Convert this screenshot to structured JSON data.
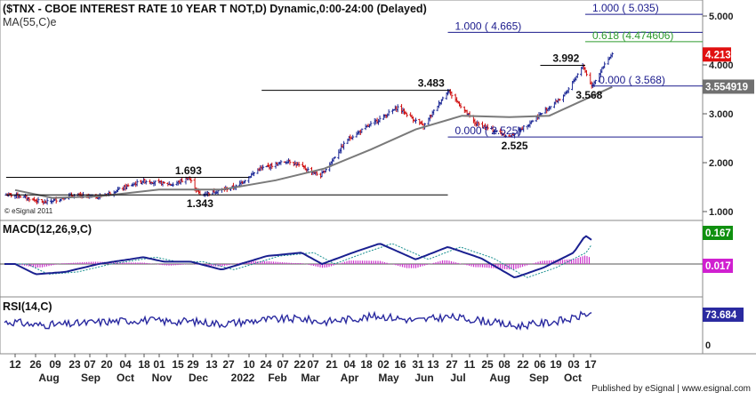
{
  "header": {
    "title": "($TNX - CBOE INTEREST RATE 10 YEAR T NOT,D) Dynamic,0:00-24:00 (Delayed)",
    "ma_label": "MA(55,C)e",
    "watermark": "© eSignal 2011"
  },
  "footer": {
    "published": "Published by eSignal | www.esignal.com"
  },
  "colors": {
    "up_bar": "#1e2a96",
    "down_bar": "#d01010",
    "ma_line": "#7a7a7a",
    "trend_line": "#000000",
    "fib_line": "#1a1a8c",
    "fib_green": "#2e9b2e",
    "macd_line": "#1a2090",
    "macd_signal": "#1a9090",
    "macd_hist": "#cc33cc",
    "rsi_line": "#2a2aa0",
    "badge_red": "#e01010",
    "badge_gray": "#707070",
    "badge_green": "#109010",
    "badge_magenta": "#d020d0",
    "badge_blue": "#2a2aa0"
  },
  "x_axis": {
    "day_labels": [
      "12",
      "26",
      "09",
      "23",
      "07",
      "20",
      "04",
      "18",
      "01",
      "15",
      "29",
      "13",
      "27",
      "10",
      "24",
      "07",
      "22",
      "07",
      "21",
      "04",
      "18",
      "02",
      "16",
      "31",
      "13",
      "27",
      "11",
      "25",
      "08",
      "22",
      "06",
      "19",
      "03",
      "17"
    ],
    "month_labels": [
      "Aug",
      "Sep",
      "Oct",
      "Nov",
      "Dec",
      "2022",
      "Feb",
      "Mar",
      "Apr",
      "May",
      "Jun",
      "Jul",
      "Aug",
      "Sep",
      "Oct"
    ]
  },
  "chart_data": [
    {
      "type": "ohlc",
      "title": "($TNX - CBOE INTEREST RATE 10 YEAR T NOT,D) Dynamic,0:00-24:00 (Delayed)",
      "y_ticks": [
        "1.000",
        "2.000",
        "3.000",
        "4.000",
        "5.000"
      ],
      "ylim": [
        0.9,
        5.3
      ],
      "last_price": "4.213",
      "ma_value": "3.554919",
      "ma_series_name": "MA(55,C)e",
      "key_points": [
        {
          "date": "2021-07-12",
          "close": 1.34
        },
        {
          "date": "2021-08-04",
          "close": 1.18
        },
        {
          "date": "2021-08-25",
          "close": 1.33
        },
        {
          "date": "2021-09-15",
          "close": 1.3
        },
        {
          "date": "2021-10-20",
          "close": 1.63
        },
        {
          "date": "2021-11-12",
          "close": 1.55
        },
        {
          "date": "2021-11-24",
          "close": 1.69
        },
        {
          "date": "2021-12-03",
          "close": 1.34
        },
        {
          "date": "2021-12-31",
          "close": 1.51
        },
        {
          "date": "2022-01-18",
          "close": 1.87
        },
        {
          "date": "2022-02-10",
          "close": 2.04
        },
        {
          "date": "2022-03-07",
          "close": 1.73
        },
        {
          "date": "2022-03-28",
          "close": 2.48
        },
        {
          "date": "2022-05-06",
          "close": 3.13
        },
        {
          "date": "2022-05-26",
          "close": 2.74
        },
        {
          "date": "2022-06-14",
          "close": 3.48
        },
        {
          "date": "2022-07-05",
          "close": 2.81
        },
        {
          "date": "2022-08-01",
          "close": 2.53
        },
        {
          "date": "2022-08-16",
          "close": 2.8
        },
        {
          "date": "2022-09-14",
          "close": 3.41
        },
        {
          "date": "2022-09-27",
          "close": 3.99
        },
        {
          "date": "2022-10-04",
          "close": 3.57
        },
        {
          "date": "2022-10-14",
          "close": 4.0
        },
        {
          "date": "2022-10-20",
          "close": 4.21
        }
      ],
      "ma_points": [
        {
          "date": "2021-07-12",
          "value": 1.44
        },
        {
          "date": "2021-08-10",
          "value": 1.28
        },
        {
          "date": "2021-09-15",
          "value": 1.31
        },
        {
          "date": "2021-11-01",
          "value": 1.45
        },
        {
          "date": "2021-12-20",
          "value": 1.45
        },
        {
          "date": "2022-01-31",
          "value": 1.64
        },
        {
          "date": "2022-03-10",
          "value": 1.88
        },
        {
          "date": "2022-04-15",
          "value": 2.27
        },
        {
          "date": "2022-05-20",
          "value": 2.68
        },
        {
          "date": "2022-06-25",
          "value": 2.96
        },
        {
          "date": "2022-08-01",
          "value": 2.93
        },
        {
          "date": "2022-09-01",
          "value": 2.96
        },
        {
          "date": "2022-10-20",
          "value": 3.55
        }
      ],
      "trend_lines": [
        {
          "from": {
            "date": "2021-07-05",
            "value": 1.7
          },
          "to": {
            "date": "2022-01-10",
            "value": 1.7
          }
        },
        {
          "from": {
            "date": "2021-07-05",
            "value": 1.34
          },
          "to": {
            "date": "2022-06-14",
            "value": 1.34
          }
        },
        {
          "from": {
            "date": "2022-01-20",
            "value": 3.48
          },
          "to": {
            "date": "2022-06-16",
            "value": 3.48
          }
        },
        {
          "from": {
            "date": "2022-08-25",
            "value": 3.99
          },
          "to": {
            "date": "2022-09-29",
            "value": 3.99
          }
        }
      ],
      "fib_lines": [
        {
          "label": "1.000 ( 4.665)",
          "value": 4.665,
          "from": "2022-06-14"
        },
        {
          "label": "1.000 ( 5.035)",
          "value": 5.035,
          "from": "2022-09-29"
        },
        {
          "label": "0.618 (4.474606)",
          "value": 4.4746,
          "from": "2022-09-29",
          "color": "green"
        },
        {
          "label": "0.000 ( 3.568)",
          "value": 3.568,
          "from": "2022-10-04"
        },
        {
          "label": "0.000 ( 2.525)",
          "value": 2.525,
          "from": "2022-06-14"
        }
      ],
      "annotations": [
        {
          "text": "1.693",
          "date": "2021-11-24",
          "value": 1.693
        },
        {
          "text": "1.343",
          "date": "2021-12-03",
          "value": 1.343
        },
        {
          "text": "3.483",
          "date": "2022-06-01",
          "value": 3.483
        },
        {
          "text": "3.992",
          "date": "2022-09-14",
          "value": 3.992
        },
        {
          "text": "3.568",
          "date": "2022-10-02",
          "value": 3.568
        },
        {
          "text": "2.525",
          "date": "2022-08-05",
          "value": 2.525
        }
      ]
    },
    {
      "type": "line",
      "title": "MACD(12,26,9,C)",
      "y_ticks": [],
      "series": [
        {
          "name": "MACD",
          "values_at": [
            {
              "date": "2021-07-12",
              "value": 0.0
            },
            {
              "date": "2021-07-28",
              "value": -0.09
            },
            {
              "date": "2021-08-20",
              "value": -0.07
            },
            {
              "date": "2021-09-15",
              "value": 0.0
            },
            {
              "date": "2021-10-20",
              "value": 0.06
            },
            {
              "date": "2021-11-05",
              "value": 0.02
            },
            {
              "date": "2021-11-26",
              "value": 0.02
            },
            {
              "date": "2021-12-20",
              "value": -0.05
            },
            {
              "date": "2022-01-24",
              "value": 0.07
            },
            {
              "date": "2022-02-20",
              "value": 0.1
            },
            {
              "date": "2022-03-08",
              "value": 0.0
            },
            {
              "date": "2022-04-01",
              "value": 0.1
            },
            {
              "date": "2022-04-22",
              "value": 0.18
            },
            {
              "date": "2022-05-20",
              "value": 0.04
            },
            {
              "date": "2022-06-14",
              "value": 0.15
            },
            {
              "date": "2022-07-10",
              "value": 0.05
            },
            {
              "date": "2022-08-05",
              "value": -0.12
            },
            {
              "date": "2022-08-28",
              "value": -0.03
            },
            {
              "date": "2022-09-20",
              "value": 0.1
            },
            {
              "date": "2022-09-29",
              "value": 0.25
            },
            {
              "date": "2022-10-08",
              "value": 0.18
            },
            {
              "date": "2022-10-20",
              "value": 0.167
            }
          ]
        },
        {
          "name": "Signal",
          "values_at": []
        },
        {
          "name": "Histogram",
          "values_at": []
        }
      ],
      "last_values": {
        "macd": "0.167",
        "histogram": "0.017"
      }
    },
    {
      "type": "line",
      "title": "RSI(14,C)",
      "y_ticks": [
        "0"
      ],
      "ylim": [
        0,
        100
      ],
      "series": [
        {
          "name": "RSI",
          "values_at": []
        }
      ],
      "last_value": "73.684"
    }
  ]
}
